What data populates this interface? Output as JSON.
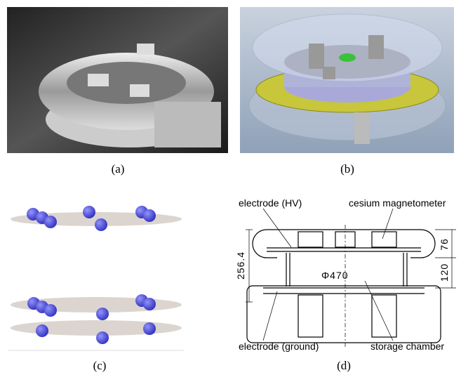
{
  "captions": [
    "(a)",
    "(b)",
    "(c)",
    "(d)"
  ],
  "drawing": {
    "labels": {
      "electrode_hv": "electrode (HV)",
      "magnetometer": "cesium magnetometer",
      "electrode_ground": "electrode (ground)",
      "storage_chamber": "storage chamber"
    },
    "dimensions": {
      "top": "76",
      "middle": "120",
      "height": "256.4",
      "diameter": "Φ470"
    }
  }
}
